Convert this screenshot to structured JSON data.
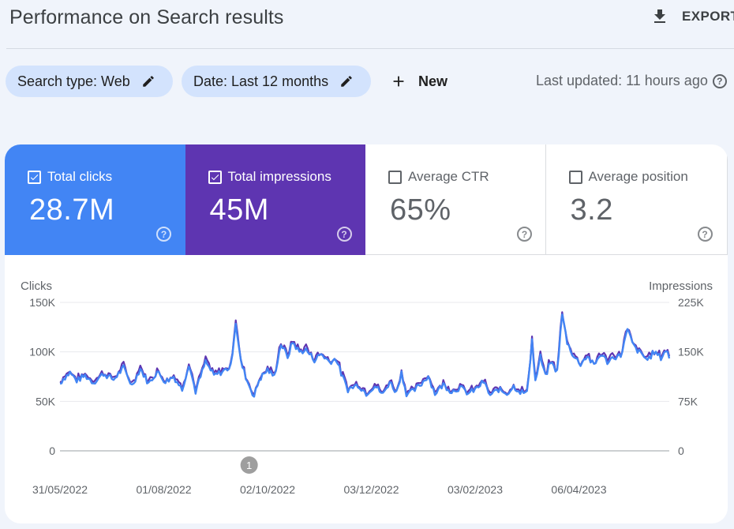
{
  "page": {
    "title": "Performance on Search results",
    "export_label": "EXPORT",
    "last_updated": "Last updated: 11 hours ago"
  },
  "filters": {
    "search_type": "Search type: Web",
    "date": "Date: Last 12 months",
    "new_label": "New"
  },
  "metrics": [
    {
      "label": "Total clicks",
      "value": "28.7M",
      "checked": true,
      "color": "#4285f4"
    },
    {
      "label": "Total impressions",
      "value": "45M",
      "checked": true,
      "color": "#5e35b1"
    },
    {
      "label": "Average CTR",
      "value": "65%",
      "checked": false,
      "color": "#ffffff"
    },
    {
      "label": "Average position",
      "value": "3.2",
      "checked": false,
      "color": "#ffffff"
    }
  ],
  "chart_data": {
    "type": "line",
    "ylabel_left": "Clicks",
    "ylabel_right": "Impressions",
    "y_ticks_left": [
      "150K",
      "100K",
      "50K",
      "0"
    ],
    "y_ticks_right": [
      "225K",
      "150K",
      "75K",
      "0"
    ],
    "ylim_left": [
      0,
      150000
    ],
    "ylim_right": [
      0,
      225000
    ],
    "x_ticks": [
      "31/05/2022",
      "01/08/2022",
      "02/10/2022",
      "03/12/2022",
      "03/02/2023",
      "06/04/2023"
    ],
    "x_range": [
      "2022-05-31",
      "2023-05-30"
    ],
    "grid": true,
    "annotation": {
      "label": "1",
      "date": "2022-09-21"
    },
    "series": [
      {
        "name": "Total clicks",
        "axis": "left",
        "color": "#4285f4"
      },
      {
        "name": "Total impressions",
        "axis": "right",
        "color": "#5e35b1"
      }
    ],
    "clicks_anchors": [
      [
        "2022-05-31",
        68000
      ],
      [
        "2022-06-02",
        73000
      ],
      [
        "2022-06-06",
        79000
      ],
      [
        "2022-06-10",
        71000
      ],
      [
        "2022-06-15",
        76000
      ],
      [
        "2022-06-20",
        69000
      ],
      [
        "2022-06-26",
        78000
      ],
      [
        "2022-07-02",
        72000
      ],
      [
        "2022-07-08",
        84000
      ],
      [
        "2022-07-13",
        66000
      ],
      [
        "2022-07-18",
        83000
      ],
      [
        "2022-07-23",
        68000
      ],
      [
        "2022-07-28",
        80000
      ],
      [
        "2022-08-02",
        70000
      ],
      [
        "2022-08-07",
        75000
      ],
      [
        "2022-08-12",
        62000
      ],
      [
        "2022-08-16",
        88000
      ],
      [
        "2022-08-20",
        60000
      ],
      [
        "2022-08-26",
        90000
      ],
      [
        "2022-08-31",
        76000
      ],
      [
        "2022-09-05",
        80000
      ],
      [
        "2022-09-10",
        85000
      ],
      [
        "2022-09-13",
        130000
      ],
      [
        "2022-09-16",
        90000
      ],
      [
        "2022-09-20",
        70000
      ],
      [
        "2022-09-24",
        55000
      ],
      [
        "2022-09-27",
        72000
      ],
      [
        "2022-10-02",
        82000
      ],
      [
        "2022-10-06",
        75000
      ],
      [
        "2022-10-10",
        108000
      ],
      [
        "2022-10-14",
        95000
      ],
      [
        "2022-10-17",
        110000
      ],
      [
        "2022-10-21",
        100000
      ],
      [
        "2022-10-25",
        102000
      ],
      [
        "2022-10-30",
        92000
      ],
      [
        "2022-11-03",
        98000
      ],
      [
        "2022-11-08",
        90000
      ],
      [
        "2022-11-12",
        93000
      ],
      [
        "2022-11-15",
        78000
      ],
      [
        "2022-11-19",
        62000
      ],
      [
        "2022-11-25",
        67000
      ],
      [
        "2022-11-30",
        58000
      ],
      [
        "2022-12-05",
        66000
      ],
      [
        "2022-12-10",
        57000
      ],
      [
        "2022-12-14",
        70000
      ],
      [
        "2022-12-18",
        59000
      ],
      [
        "2022-12-21",
        79000
      ],
      [
        "2022-12-24",
        58000
      ],
      [
        "2022-12-28",
        60000
      ],
      [
        "2023-01-02",
        68000
      ],
      [
        "2023-01-06",
        76000
      ],
      [
        "2023-01-10",
        58000
      ],
      [
        "2023-01-15",
        67000
      ],
      [
        "2023-01-20",
        60000
      ],
      [
        "2023-01-25",
        64000
      ],
      [
        "2023-01-30",
        58000
      ],
      [
        "2023-02-04",
        63000
      ],
      [
        "2023-02-08",
        70000
      ],
      [
        "2023-02-12",
        56000
      ],
      [
        "2023-02-17",
        62000
      ],
      [
        "2023-02-22",
        58000
      ],
      [
        "2023-02-26",
        65000
      ],
      [
        "2023-03-02",
        60000
      ],
      [
        "2023-03-06",
        58000
      ],
      [
        "2023-03-09",
        112000
      ],
      [
        "2023-03-11",
        70000
      ],
      [
        "2023-03-14",
        95000
      ],
      [
        "2023-03-17",
        75000
      ],
      [
        "2023-03-20",
        90000
      ],
      [
        "2023-03-24",
        80000
      ],
      [
        "2023-03-27",
        138000
      ],
      [
        "2023-03-30",
        110000
      ],
      [
        "2023-04-03",
        95000
      ],
      [
        "2023-04-07",
        88000
      ],
      [
        "2023-04-11",
        96000
      ],
      [
        "2023-04-15",
        86000
      ],
      [
        "2023-04-19",
        98000
      ],
      [
        "2023-04-23",
        90000
      ],
      [
        "2023-04-27",
        95000
      ],
      [
        "2023-05-01",
        96000
      ],
      [
        "2023-05-05",
        122000
      ],
      [
        "2023-05-09",
        105000
      ],
      [
        "2023-05-13",
        98000
      ],
      [
        "2023-05-17",
        92000
      ],
      [
        "2023-05-21",
        100000
      ],
      [
        "2023-05-25",
        94000
      ],
      [
        "2023-05-28",
        102000
      ],
      [
        "2023-05-30",
        95000
      ]
    ]
  }
}
